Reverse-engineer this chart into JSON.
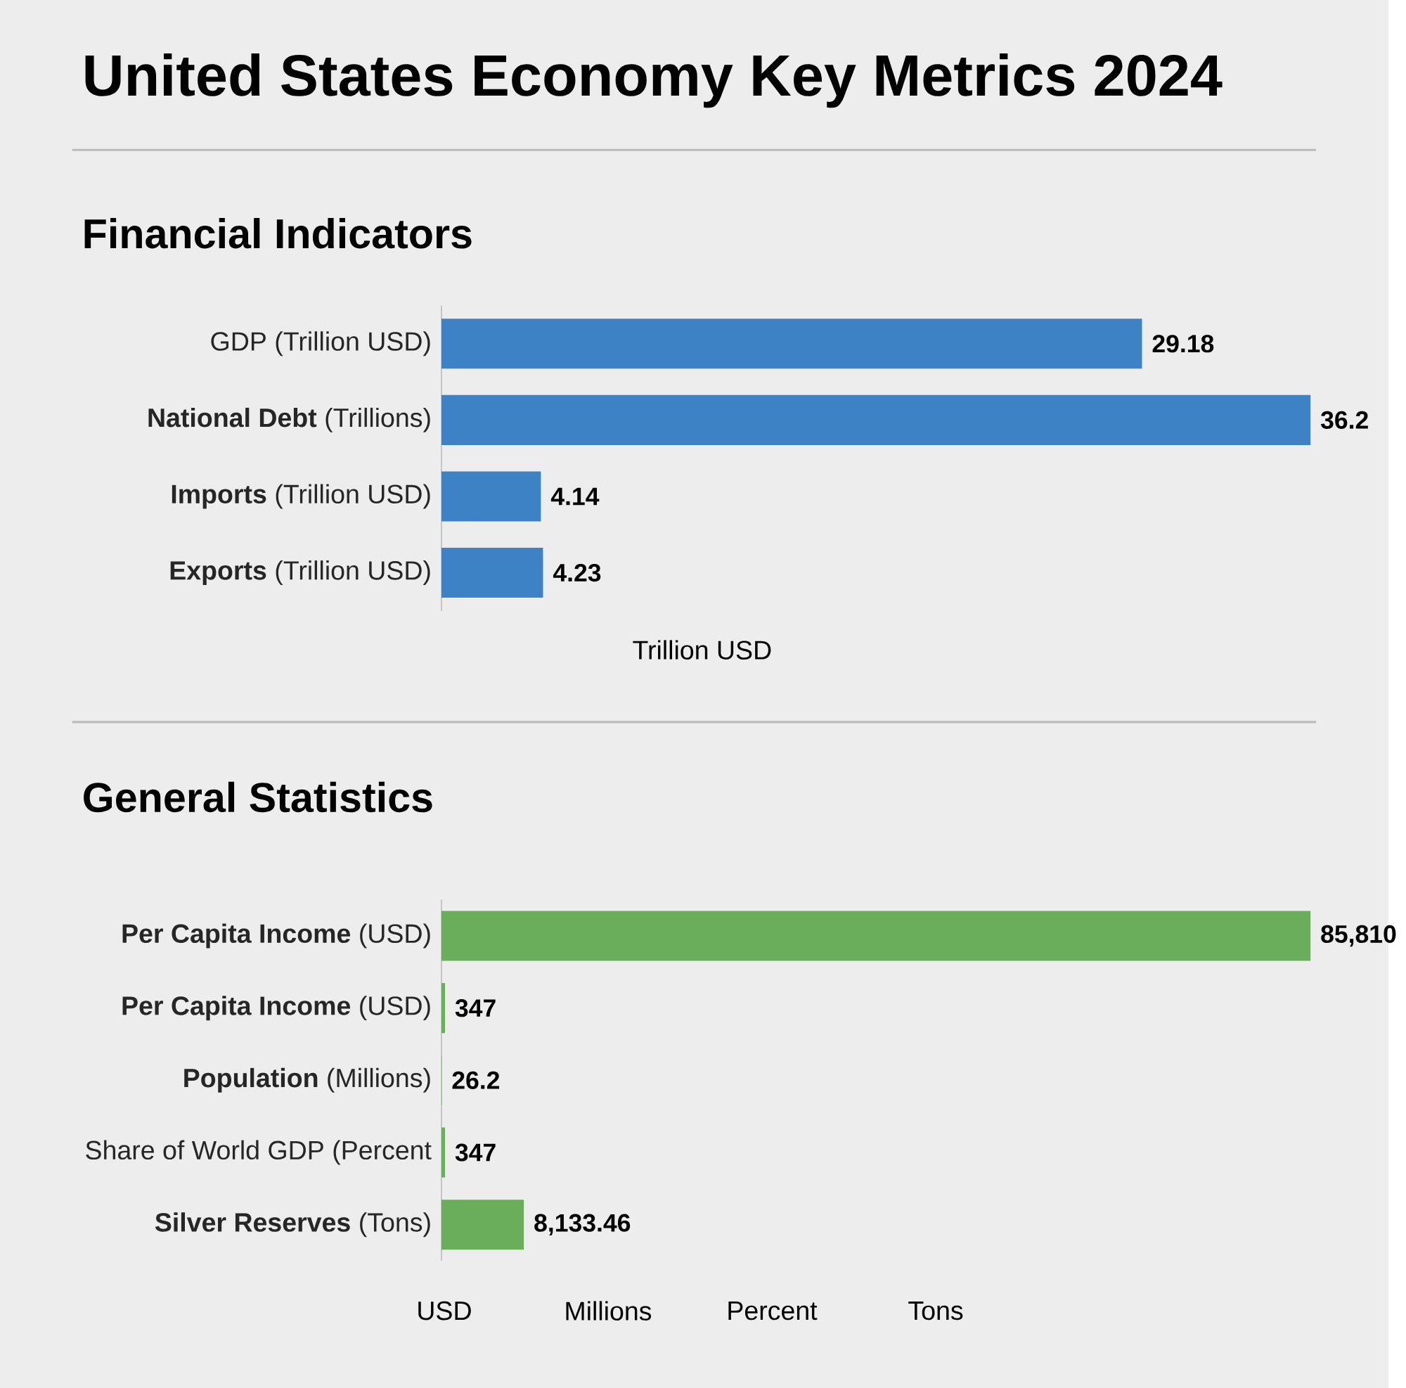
{
  "chart_data": [
    {
      "type": "bar",
      "orientation": "horizontal",
      "title": "United States Economy Key Metrics 2024",
      "subtitle": "Financial Indicators",
      "categories": [
        "GDP (Trillion USD)",
        "**National Debt** (Trillions)",
        "**Imports** (Trillion USD)",
        "**Exports** (Trillion USD)"
      ],
      "values": [
        29.18,
        36.2,
        4.14,
        4.23
      ],
      "value_labels": [
        "29.18",
        "36.2",
        "4.14",
        "4.23"
      ],
      "color": "#3d82c4",
      "xlabel": "Trillion USD"
    },
    {
      "type": "bar",
      "orientation": "horizontal",
      "title": "General Statistics",
      "categories": [
        "**Per Capita Income** (USD)",
        "**Per Capita Income** (USD)",
        "**Population** (Millions)",
        "Share of World GDP (Percent",
        "**Silver Reserves** (Tons)"
      ],
      "values": [
        85810,
        347,
        26.2,
        347,
        8133.46
      ],
      "value_labels": [
        "85,810",
        "347",
        "26.2",
        "347",
        "8,133.46"
      ],
      "color": "#6aae5b",
      "annotations": [
        "USD",
        "Millions",
        "Percent",
        "Tons"
      ]
    }
  ]
}
